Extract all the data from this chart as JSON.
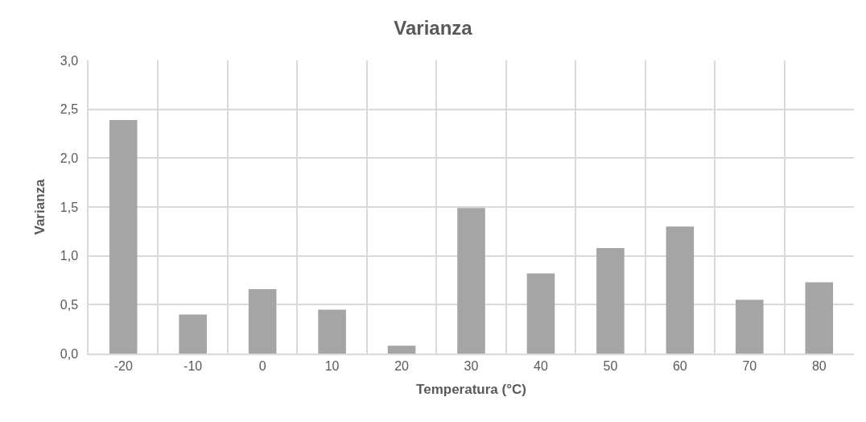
{
  "chart_data": {
    "type": "bar",
    "title": "Varianza",
    "xlabel": "Temperatura (°C)",
    "ylabel": "Varianza",
    "categories": [
      "-20",
      "-10",
      "0",
      "10",
      "20",
      "30",
      "40",
      "50",
      "60",
      "70",
      "80"
    ],
    "values": [
      2.39,
      0.4,
      0.66,
      0.45,
      0.08,
      1.49,
      0.82,
      1.08,
      1.3,
      0.55,
      0.73
    ],
    "color": "#a5a5a5",
    "ylim": [
      0,
      3
    ],
    "yticks": [
      {
        "value": 0,
        "label": "0,0"
      },
      {
        "value": 0.5,
        "label": "0,5"
      },
      {
        "value": 1,
        "label": "1,0"
      },
      {
        "value": 1.5,
        "label": "1,5"
      },
      {
        "value": 2,
        "label": "2,0"
      },
      {
        "value": 2.5,
        "label": "2,5"
      },
      {
        "value": 3,
        "label": "3,0"
      }
    ],
    "grid": true
  }
}
